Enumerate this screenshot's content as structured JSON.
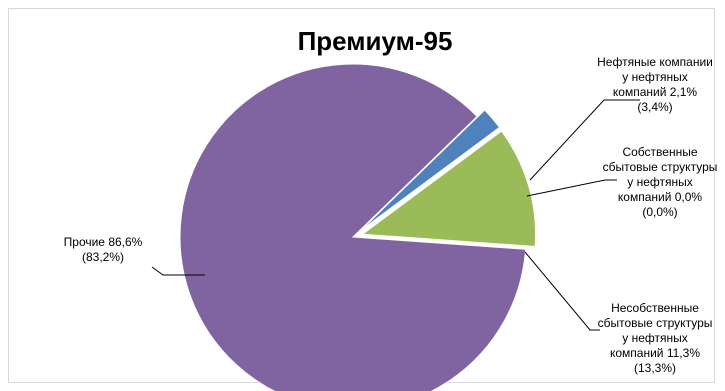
{
  "chart_data": {
    "type": "pie",
    "title": "Премиум-95",
    "legend": "none",
    "slices": [
      {
        "name": "Нефтяные компании у нефтяных компаний",
        "value": 2.1,
        "prev_value": 3.4,
        "color": "#4f81bd",
        "label_lines": [
          "Нефтяные компании",
          "у нефтяных",
          "компаний 2,1%",
          "(3,4%)"
        ]
      },
      {
        "name": "Собственные сбытовые структуры у нефтяных компаний",
        "value": 0.0,
        "prev_value": 0.0,
        "color": "#c0504d",
        "label_lines": [
          "Собственные",
          "сбытовые структуры",
          "у нефтяных",
          "компаний 0,0%",
          "(0,0%)"
        ]
      },
      {
        "name": "Несобственные сбытовые структуры у нефтяных компаний",
        "value": 11.3,
        "prev_value": 13.3,
        "color": "#9bbb59",
        "label_lines": [
          "Несобственные",
          "сбытовые структуры",
          "у нефтяных",
          "компаний 11,3%",
          "(13,3%)"
        ]
      },
      {
        "name": "Прочие",
        "value": 86.6,
        "prev_value": 83.2,
        "color": "#8064a2",
        "label_lines": [
          "Прочие 86,6%",
          "(83,2%)"
        ]
      }
    ]
  }
}
